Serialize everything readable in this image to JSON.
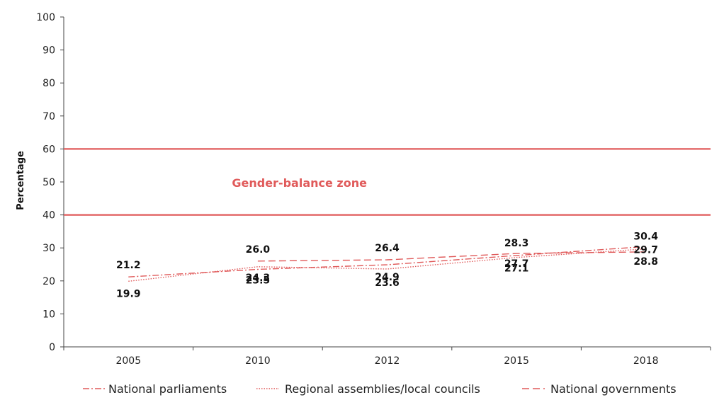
{
  "chart_data": {
    "type": "line",
    "ylabel": "Percentage",
    "ylim": [
      0,
      100
    ],
    "yticks": [
      "0",
      "10",
      "20",
      "30",
      "40",
      "50",
      "60",
      "70",
      "80",
      "90",
      "100"
    ],
    "categories": [
      "2005",
      "2010",
      "2012",
      "2015",
      "2018"
    ],
    "color": "#e05a5a",
    "zone": {
      "label": "Gender-balance zone",
      "lower": 40,
      "upper": 60
    },
    "series": [
      {
        "name": "National parliaments",
        "style": "dash-dot",
        "values": [
          21.2,
          23.5,
          24.9,
          27.7,
          30.4
        ],
        "labels": [
          "21.2",
          "23.5",
          "24.9",
          "27.7",
          "30.4"
        ]
      },
      {
        "name": "Regional assemblies/local councils",
        "style": "dotted",
        "values": [
          19.9,
          24.3,
          23.6,
          27.1,
          29.7
        ],
        "labels": [
          "19.9",
          "24.3",
          "23.6",
          "27.1",
          "29.7"
        ]
      },
      {
        "name": "National governments",
        "style": "dashed",
        "values": [
          null,
          26.0,
          26.4,
          28.3,
          28.8
        ],
        "labels": [
          null,
          "26.0",
          "26.4",
          "28.3",
          "28.8"
        ]
      }
    ]
  }
}
